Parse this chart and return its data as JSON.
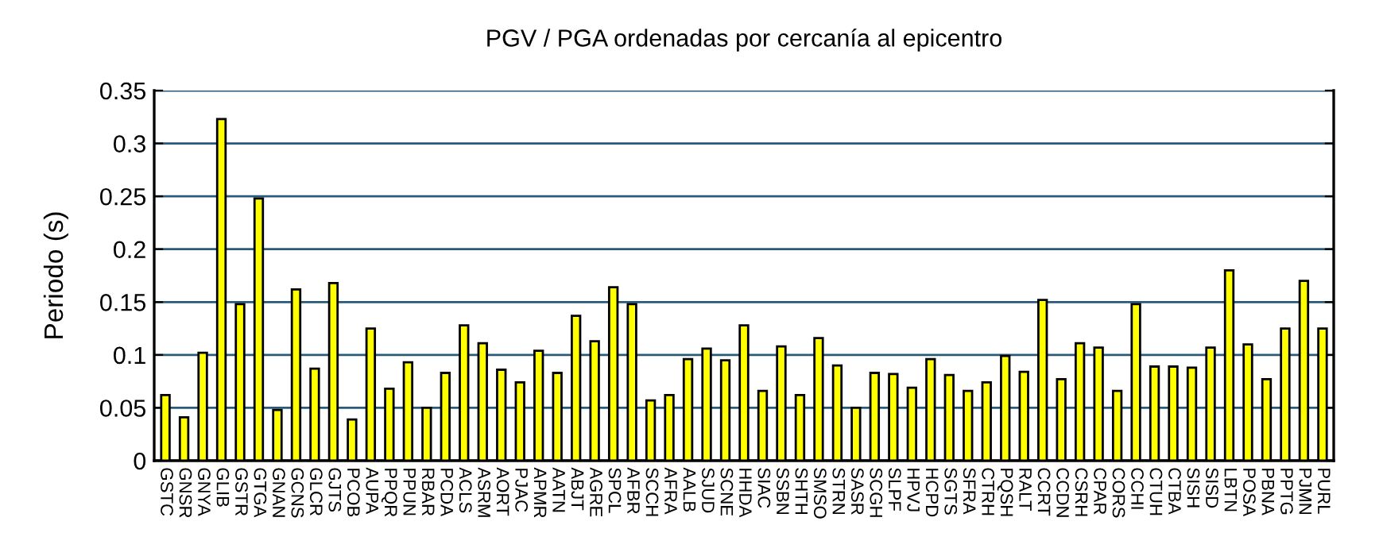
{
  "chart_data": {
    "type": "bar",
    "title": "PGV / PGA ordenadas por cercanía al epicentro",
    "ylabel": "Periodo (s)",
    "categories": [
      "GSTC",
      "GNSR",
      "GNYA",
      "GLIB",
      "GSTR",
      "GTGA",
      "GNAN",
      "GCNS",
      "GLCR",
      "GJTS",
      "PCOB",
      "AUPA",
      "PPQR",
      "PPUN",
      "RBAR",
      "PCDA",
      "ACLS",
      "ASRM",
      "AORT",
      "PJAC",
      "APMR",
      "AATN",
      "ABJT",
      "AGRE",
      "SPCL",
      "AFBR",
      "SCCH",
      "AFRA",
      "AALB",
      "SJUD",
      "SCNE",
      "HHDA",
      "SIAC",
      "SSBN",
      "SHTH",
      "SMSO",
      "STRN",
      "SASR",
      "SCGH",
      "SLPF",
      "HPVJ",
      "HCPD",
      "SGTS",
      "SFRA",
      "CTRH",
      "PQSH",
      "RALT",
      "CCRT",
      "CCDN",
      "CSRH",
      "CPAR",
      "CORS",
      "CCHI",
      "CTUH",
      "CTBA",
      "SISH",
      "SISD",
      "LBTN",
      "POSA",
      "PBNA",
      "PPTG",
      "PJMN",
      "PURL"
    ],
    "values": [
      0.062,
      0.041,
      0.102,
      0.323,
      0.148,
      0.248,
      0.048,
      0.162,
      0.087,
      0.168,
      0.039,
      0.125,
      0.068,
      0.093,
      0.05,
      0.083,
      0.128,
      0.111,
      0.086,
      0.074,
      0.104,
      0.083,
      0.137,
      0.113,
      0.164,
      0.148,
      0.057,
      0.062,
      0.096,
      0.106,
      0.095,
      0.128,
      0.066,
      0.108,
      0.062,
      0.116,
      0.09,
      0.05,
      0.083,
      0.082,
      0.069,
      0.096,
      0.081,
      0.066,
      0.074,
      0.099,
      0.084,
      0.152,
      0.077,
      0.111,
      0.107,
      0.066,
      0.148,
      0.089,
      0.089,
      0.088,
      0.107,
      0.18,
      0.11,
      0.077,
      0.125,
      0.17,
      0.125
    ],
    "color": "#ffff00",
    "ylim": [
      0,
      0.35
    ],
    "yticks": [
      0,
      0.05,
      0.1,
      0.15,
      0.2,
      0.25,
      0.3,
      0.35
    ],
    "grid": "y"
  }
}
